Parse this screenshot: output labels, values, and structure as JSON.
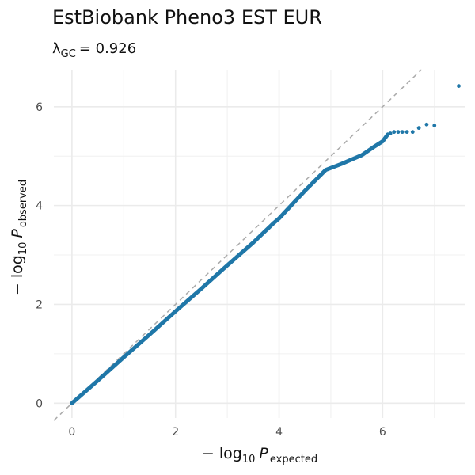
{
  "chart_data": {
    "type": "scatter",
    "title": "EstBiobank Pheno3 EST EUR",
    "subtitle": {
      "lambda_sub": "GC",
      "value_text": "= 0.926"
    },
    "xlabel": {
      "prefix": "− log",
      "base": "10",
      "P": "P",
      "subscript": "expected"
    },
    "ylabel": {
      "prefix": "− log",
      "base": "10",
      "P": "P",
      "subscript": "observed"
    },
    "xlim": [
      -0.35,
      7.6
    ],
    "ylim": [
      -0.3,
      6.75
    ],
    "x_ticks": [
      0,
      2,
      4,
      6
    ],
    "y_ticks": [
      0,
      2,
      4,
      6
    ],
    "x_tick_labels": [
      "0",
      "2",
      "4",
      "6"
    ],
    "y_tick_labels": [
      "0",
      "2",
      "4",
      "6"
    ],
    "grid": true,
    "reference_line": {
      "slope": 1,
      "intercept": 0,
      "style": "dashed",
      "color": "#aaaaaa"
    },
    "point_color": "#1f77a8",
    "curve": [
      [
        0,
        0
      ],
      [
        0.5,
        0.46
      ],
      [
        1.0,
        0.93
      ],
      [
        1.5,
        1.39
      ],
      [
        2.0,
        1.86
      ],
      [
        2.5,
        2.32
      ],
      [
        3.0,
        2.79
      ],
      [
        3.5,
        3.25
      ],
      [
        3.9,
        3.65
      ],
      [
        4.0,
        3.74
      ],
      [
        4.5,
        4.3
      ],
      [
        4.9,
        4.72
      ],
      [
        5.2,
        4.84
      ],
      [
        5.6,
        5.02
      ],
      [
        5.85,
        5.2
      ],
      [
        6.0,
        5.3
      ],
      [
        6.1,
        5.44
      ]
    ],
    "tail_points": [
      [
        6.15,
        5.46
      ],
      [
        6.22,
        5.49
      ],
      [
        6.3,
        5.49
      ],
      [
        6.38,
        5.49
      ],
      [
        6.47,
        5.49
      ],
      [
        6.58,
        5.49
      ],
      [
        6.7,
        5.57
      ],
      [
        6.85,
        5.64
      ],
      [
        7.0,
        5.62
      ],
      [
        7.47,
        6.42
      ]
    ]
  }
}
